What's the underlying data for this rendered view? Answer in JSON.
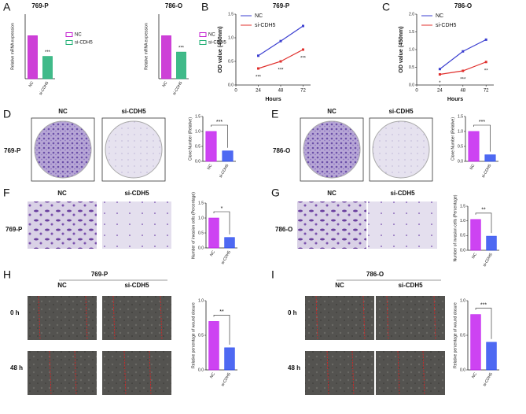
{
  "panel_labels": [
    "A",
    "B",
    "C",
    "D",
    "E",
    "F",
    "G",
    "H",
    "I"
  ],
  "chart_data": [
    {
      "type": "bar",
      "title": "769-P",
      "ylabel": "Relative mRNA expression",
      "categories": [
        "NC",
        "si-CDH5"
      ],
      "ylim": [
        0,
        1.5
      ],
      "series": [
        {
          "name": "NC",
          "color": "#c41fd0",
          "values": [
            1.0,
            null
          ]
        },
        {
          "name": "si-CDH5",
          "color": "#1fae74",
          "values": [
            null,
            0.52
          ]
        }
      ],
      "annotation": "***"
    },
    {
      "type": "bar",
      "title": "786-O",
      "ylabel": "Relative mRNA expression",
      "categories": [
        "NC",
        "si-CDH5"
      ],
      "ylim": [
        0,
        1.5
      ],
      "series": [
        {
          "name": "NC",
          "color": "#c41fd0",
          "values": [
            1.0,
            null
          ]
        },
        {
          "name": "si-CDH5",
          "color": "#1fae74",
          "values": [
            null,
            0.62
          ]
        }
      ],
      "annotation": "***"
    },
    {
      "type": "line",
      "title": "769-P",
      "xlabel": "Hours",
      "ylabel": "OD value (450nm)",
      "x": [
        24,
        48,
        72
      ],
      "xlim": [
        0,
        80
      ],
      "xticks": [
        0,
        24,
        48,
        72
      ],
      "ylim": [
        0,
        1.5
      ],
      "yticks": [
        {
          "value": 0,
          "label": "0.0"
        },
        {
          "value": 0.5,
          "label": "0.5"
        },
        {
          "value": 1,
          "label": "1.0"
        },
        {
          "value": 1.5,
          "label": "1.5"
        }
      ],
      "series": [
        {
          "name": "NC",
          "color": "#3b3fd0",
          "values": [
            0.62,
            0.93,
            1.25
          ]
        },
        {
          "name": "si-CDH5",
          "color": "#e0302d",
          "values": [
            0.35,
            0.5,
            0.75
          ],
          "annotations": [
            "***",
            "***",
            "***"
          ]
        }
      ]
    },
    {
      "type": "line",
      "title": "786-O",
      "xlabel": "Hours",
      "ylabel": "OD value (450nm)",
      "x": [
        24,
        48,
        72
      ],
      "xlim": [
        0,
        80
      ],
      "xticks": [
        0,
        24,
        48,
        72
      ],
      "ylim": [
        0,
        2
      ],
      "yticks": [
        {
          "value": 0,
          "label": "0.0"
        },
        {
          "value": 0.5,
          "label": "0.5"
        },
        {
          "value": 1,
          "label": "1.0"
        },
        {
          "value": 1.5,
          "label": "1.5"
        },
        {
          "value": 2,
          "label": "2.0"
        }
      ],
      "series": [
        {
          "name": "NC",
          "color": "#3b3fd0",
          "values": [
            0.45,
            0.95,
            1.28
          ]
        },
        {
          "name": "si-CDH5",
          "color": "#e0302d",
          "values": [
            0.3,
            0.4,
            0.65
          ],
          "annotations": [
            "*",
            "***",
            "**"
          ]
        }
      ]
    },
    {
      "type": "bar",
      "ylabel": "Clone Number (Relative)",
      "categories": [
        "NC",
        "si-CDH5"
      ],
      "values": [
        1.0,
        0.35
      ],
      "colors": [
        "#c422f0",
        "#2f4ff0"
      ],
      "ylim": [
        0,
        1.5
      ],
      "yticks": [
        {
          "value": 0,
          "label": "0.0"
        },
        {
          "value": 0.5,
          "label": "0.5"
        },
        {
          "value": 1,
          "label": "1.0"
        },
        {
          "value": 1.5,
          "label": "1.5"
        }
      ],
      "annotation": "***"
    },
    {
      "type": "bar",
      "ylabel": "Clone Number (Relative)",
      "categories": [
        "NC",
        "si-CDH5"
      ],
      "values": [
        1.0,
        0.22
      ],
      "colors": [
        "#c422f0",
        "#2f4ff0"
      ],
      "ylim": [
        0,
        1.5
      ],
      "yticks": [
        {
          "value": 0,
          "label": "0.0"
        },
        {
          "value": 0.5,
          "label": "0.5"
        },
        {
          "value": 1,
          "label": "1.0"
        },
        {
          "value": 1.5,
          "label": "1.5"
        }
      ],
      "annotation": "***"
    },
    {
      "type": "bar",
      "ylabel": "Number of invasion cells (Percentage)",
      "categories": [
        "NC",
        "si-CDH5"
      ],
      "values": [
        1.0,
        0.35
      ],
      "colors": [
        "#c422f0",
        "#2f4ff0"
      ],
      "ylim": [
        0,
        1.5
      ],
      "yticks": [
        {
          "value": 0,
          "label": "0.0"
        },
        {
          "value": 0.5,
          "label": "0.5"
        },
        {
          "value": 1,
          "label": "1.0"
        },
        {
          "value": 1.5,
          "label": "1.5"
        }
      ],
      "annotation": "*"
    },
    {
      "type": "bar",
      "ylabel": "Number of invasion cells (Percentage)",
      "categories": [
        "NC",
        "si-CDH5"
      ],
      "values": [
        1.05,
        0.48
      ],
      "colors": [
        "#c422f0",
        "#2f4ff0"
      ],
      "ylim": [
        0,
        1.5
      ],
      "yticks": [
        {
          "value": 0,
          "label": "0.0"
        },
        {
          "value": 0.5,
          "label": "0.5"
        },
        {
          "value": 1,
          "label": "1.0"
        },
        {
          "value": 1.5,
          "label": "1.5"
        }
      ],
      "annotation": "**"
    },
    {
      "type": "bar",
      "ylabel": "Relative percentage of wound closure",
      "categories": [
        "NC",
        "si-CDH5"
      ],
      "values": [
        0.7,
        0.32
      ],
      "colors": [
        "#c422f0",
        "#2f4ff0"
      ],
      "ylim": [
        0,
        1
      ],
      "yticks": [
        {
          "value": 0,
          "label": "0.0"
        },
        {
          "value": 0.5,
          "label": "0.5"
        },
        {
          "value": 1,
          "label": "1.0"
        }
      ],
      "annotation": "**"
    },
    {
      "type": "bar",
      "ylabel": "Relative percentage of wound closure",
      "categories": [
        "NC",
        "si-CDH5"
      ],
      "values": [
        0.8,
        0.4
      ],
      "colors": [
        "#c422f0",
        "#2f4ff0"
      ],
      "ylim": [
        0,
        1
      ],
      "yticks": [
        {
          "value": 0,
          "label": "0.0"
        },
        {
          "value": 0.5,
          "label": "0.5"
        },
        {
          "value": 1,
          "label": "1.0"
        }
      ],
      "annotation": "***"
    }
  ],
  "image_panels": {
    "D": {
      "columns": [
        "NC",
        "si-CDH5"
      ],
      "row": "769-P"
    },
    "E": {
      "columns": [
        "NC",
        "si-CDH5"
      ],
      "row": "786-O"
    },
    "F": {
      "columns": [
        "NC",
        "si-CDH5"
      ],
      "row": "769-P"
    },
    "G": {
      "columns": [
        "NC",
        "si-CDH5"
      ],
      "row": "786-O"
    },
    "H": {
      "title": "769-P",
      "columns": [
        "NC",
        "si-CDH5"
      ],
      "rows": [
        "0 h",
        "48 h"
      ]
    },
    "I": {
      "title": "786-O",
      "columns": [
        "NC",
        "si-CDH5"
      ],
      "rows": [
        "0 h",
        "48 h"
      ]
    }
  }
}
